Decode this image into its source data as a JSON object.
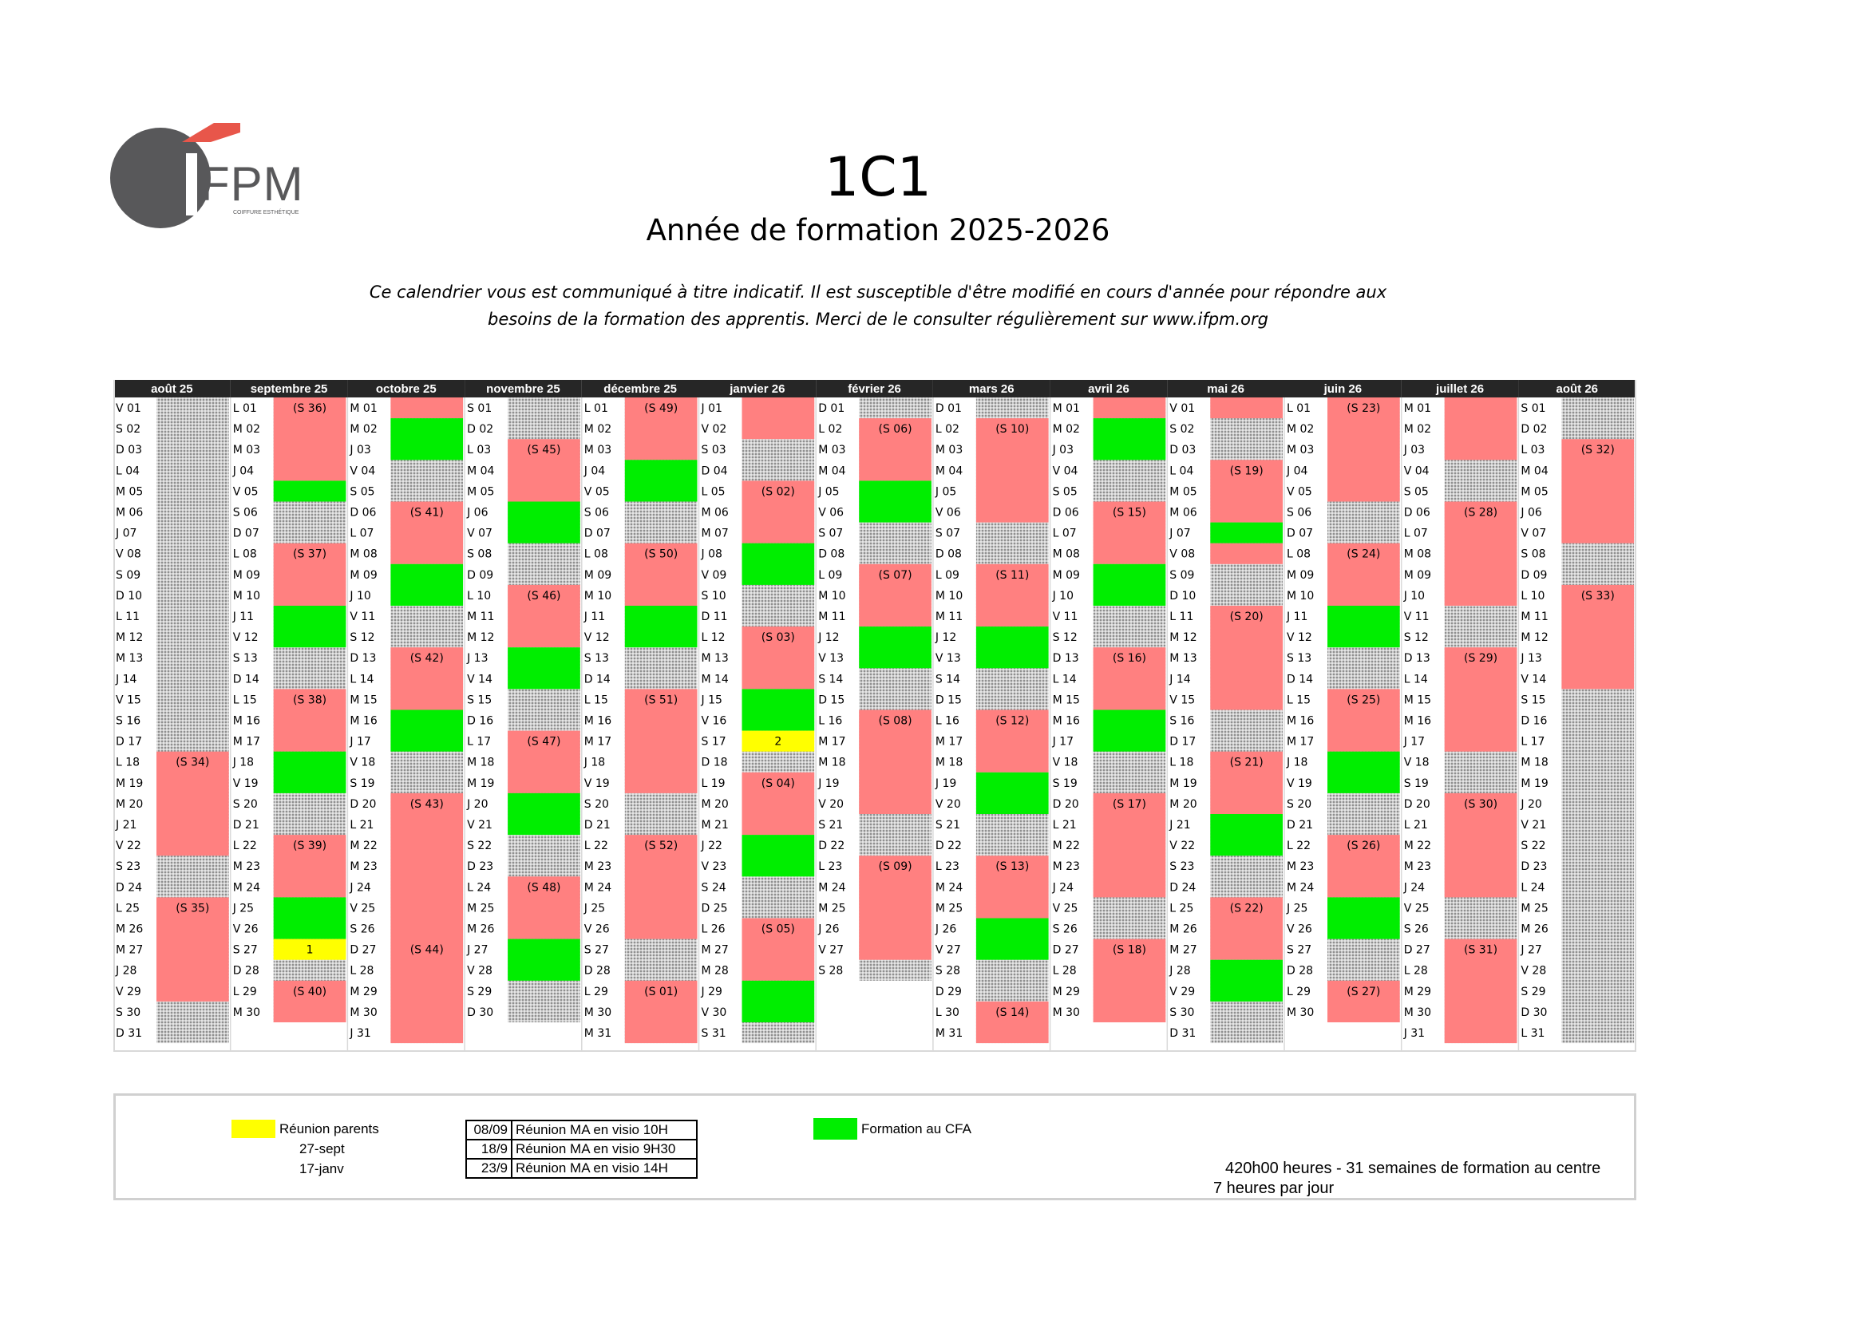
{
  "logo": {
    "text": "IFPM",
    "tagline": "COIFFURE ESTHÉTIQUE",
    "colors": {
      "circle": "#58585a",
      "roof": "#e8564a"
    }
  },
  "header": {
    "title": "1C1",
    "subtitle": "Année de formation 2025-2026",
    "notice": "Ce calendrier vous est communiqué à titre indicatif. Il est susceptible d'être modifié en cours d'année pour répondre aux besoins de la formation des apprentis. Merci de le consulter régulièrement sur www.ifpm.org"
  },
  "colors": {
    "header": "#262626",
    "formation": "#ff8080",
    "cfa": "#00ee00",
    "meeting": "#ffff00",
    "pattern": "#c8c8c8"
  },
  "calendar": {
    "months": [
      {
        "label": "août 25",
        "start": "V",
        "days": 31,
        "weekLabels": {
          "18": "(S 34)",
          "25": "(S 35)"
        },
        "blocks": [
          [
            18,
            22,
            "f"
          ],
          [
            25,
            29,
            "f"
          ]
        ],
        "markers": {}
      },
      {
        "label": "septembre 25",
        "start": "L",
        "days": 30,
        "weekLabels": {
          "1": "(S 36)",
          "8": "(S 37)",
          "15": "(S 38)",
          "22": "(S 39)",
          "29": "(S 40)"
        },
        "blocks": [
          [
            1,
            4,
            "f"
          ],
          [
            5,
            5,
            "g"
          ],
          [
            8,
            10,
            "f"
          ],
          [
            11,
            12,
            "g"
          ],
          [
            15,
            17,
            "f"
          ],
          [
            18,
            19,
            "g"
          ],
          [
            22,
            24,
            "f"
          ],
          [
            25,
            26,
            "g"
          ],
          [
            27,
            27,
            "y"
          ],
          [
            29,
            30,
            "f"
          ]
        ],
        "markers": {
          "27": "1"
        }
      },
      {
        "label": "octobre 25",
        "start": "M",
        "days": 31,
        "weekLabels": {
          "6": "(S 41)",
          "13": "(S 42)",
          "20": "(S 43)",
          "27": "(S 44)"
        },
        "blocks": [
          [
            1,
            1,
            "f"
          ],
          [
            2,
            3,
            "g"
          ],
          [
            6,
            8,
            "f"
          ],
          [
            9,
            10,
            "g"
          ],
          [
            13,
            15,
            "f"
          ],
          [
            16,
            17,
            "g"
          ],
          [
            20,
            31,
            "f"
          ]
        ],
        "markers": {}
      },
      {
        "label": "novembre 25",
        "start": "S",
        "days": 30,
        "weekLabels": {
          "3": "(S 45)",
          "10": "(S 46)",
          "17": "(S 47)",
          "24": "(S 48)"
        },
        "blocks": [
          [
            3,
            5,
            "f"
          ],
          [
            6,
            7,
            "g"
          ],
          [
            10,
            12,
            "f"
          ],
          [
            13,
            14,
            "g"
          ],
          [
            17,
            19,
            "f"
          ],
          [
            20,
            21,
            "g"
          ],
          [
            24,
            26,
            "f"
          ],
          [
            27,
            28,
            "g"
          ]
        ],
        "markers": {}
      },
      {
        "label": "décembre 25",
        "start": "L",
        "days": 31,
        "weekLabels": {
          "1": "(S 49)",
          "8": "(S 50)",
          "15": "(S 51)",
          "22": "(S 52)",
          "29": "(S 01)"
        },
        "blocks": [
          [
            1,
            3,
            "f"
          ],
          [
            4,
            5,
            "g"
          ],
          [
            8,
            10,
            "f"
          ],
          [
            11,
            12,
            "g"
          ],
          [
            15,
            19,
            "f"
          ],
          [
            22,
            26,
            "f"
          ],
          [
            29,
            31,
            "f"
          ]
        ],
        "markers": {}
      },
      {
        "label": "janvier 26",
        "start": "J",
        "days": 31,
        "weekLabels": {
          "5": "(S 02)",
          "12": "(S 03)",
          "19": "(S 04)",
          "26": "(S 05)"
        },
        "blocks": [
          [
            1,
            2,
            "f"
          ],
          [
            5,
            7,
            "f"
          ],
          [
            8,
            9,
            "g"
          ],
          [
            12,
            14,
            "f"
          ],
          [
            15,
            16,
            "g"
          ],
          [
            17,
            17,
            "y"
          ],
          [
            19,
            21,
            "f"
          ],
          [
            22,
            23,
            "g"
          ],
          [
            26,
            28,
            "f"
          ],
          [
            29,
            30,
            "g"
          ]
        ],
        "markers": {
          "17": "2"
        }
      },
      {
        "label": "février 26",
        "start": "D",
        "days": 28,
        "weekLabels": {
          "2": "(S 06)",
          "9": "(S 07)",
          "16": "(S 08)",
          "23": "(S 09)"
        },
        "blocks": [
          [
            2,
            4,
            "f"
          ],
          [
            5,
            6,
            "g"
          ],
          [
            9,
            11,
            "f"
          ],
          [
            12,
            13,
            "g"
          ],
          [
            16,
            20,
            "f"
          ],
          [
            23,
            27,
            "f"
          ]
        ],
        "markers": {}
      },
      {
        "label": "mars 26",
        "start": "D",
        "days": 31,
        "weekLabels": {
          "2": "(S 10)",
          "9": "(S 11)",
          "16": "(S 12)",
          "23": "(S 13)",
          "30": "(S 14)"
        },
        "blocks": [
          [
            2,
            6,
            "f"
          ],
          [
            9,
            11,
            "f"
          ],
          [
            12,
            13,
            "g"
          ],
          [
            16,
            18,
            "f"
          ],
          [
            19,
            20,
            "g"
          ],
          [
            23,
            25,
            "f"
          ],
          [
            26,
            27,
            "g"
          ],
          [
            30,
            31,
            "f"
          ]
        ],
        "markers": {}
      },
      {
        "label": "avril 26",
        "start": "M",
        "days": 30,
        "weekLabels": {
          "6": "(S 15)",
          "13": "(S 16)",
          "20": "(S 17)",
          "27": "(S 18)"
        },
        "blocks": [
          [
            1,
            1,
            "f"
          ],
          [
            2,
            3,
            "g"
          ],
          [
            6,
            8,
            "f"
          ],
          [
            9,
            10,
            "g"
          ],
          [
            13,
            15,
            "f"
          ],
          [
            16,
            17,
            "g"
          ],
          [
            20,
            24,
            "f"
          ],
          [
            27,
            30,
            "f"
          ]
        ],
        "markers": {}
      },
      {
        "label": "mai 26",
        "start": "V",
        "days": 31,
        "weekLabels": {
          "4": "(S 19)",
          "11": "(S 20)",
          "18": "(S 21)",
          "25": "(S 22)"
        },
        "blocks": [
          [
            1,
            1,
            "f"
          ],
          [
            4,
            6,
            "f"
          ],
          [
            7,
            7,
            "g"
          ],
          [
            8,
            8,
            "f"
          ],
          [
            11,
            15,
            "f"
          ],
          [
            18,
            20,
            "f"
          ],
          [
            21,
            22,
            "g"
          ],
          [
            25,
            27,
            "f"
          ],
          [
            28,
            29,
            "g"
          ]
        ],
        "markers": {}
      },
      {
        "label": "juin 26",
        "start": "L",
        "days": 30,
        "weekLabels": {
          "1": "(S 23)",
          "8": "(S 24)",
          "15": "(S 25)",
          "22": "(S 26)",
          "29": "(S 27)"
        },
        "blocks": [
          [
            1,
            5,
            "f"
          ],
          [
            8,
            10,
            "f"
          ],
          [
            11,
            12,
            "g"
          ],
          [
            15,
            17,
            "f"
          ],
          [
            18,
            19,
            "g"
          ],
          [
            22,
            24,
            "f"
          ],
          [
            25,
            26,
            "g"
          ],
          [
            29,
            30,
            "f"
          ]
        ],
        "markers": {}
      },
      {
        "label": "juillet 26",
        "start": "M",
        "days": 31,
        "weekLabels": {
          "6": "(S 28)",
          "13": "(S 29)",
          "20": "(S 30)",
          "27": "(S 31)"
        },
        "blocks": [
          [
            1,
            3,
            "f"
          ],
          [
            6,
            10,
            "f"
          ],
          [
            13,
            17,
            "f"
          ],
          [
            20,
            24,
            "f"
          ],
          [
            27,
            31,
            "f"
          ]
        ],
        "markers": {}
      },
      {
        "label": "août 26",
        "start": "S",
        "days": 31,
        "weekLabels": {
          "3": "(S 32)",
          "10": "(S 33)"
        },
        "blocks": [
          [
            3,
            7,
            "f"
          ],
          [
            10,
            14,
            "f"
          ]
        ],
        "markers": {}
      }
    ]
  },
  "legend": {
    "parents_label": "Réunion parents",
    "parents_dates": [
      "27-sept",
      "17-janv"
    ],
    "meetings": [
      {
        "date": "08/09",
        "label": "Réunion MA en visio 10H"
      },
      {
        "date": "18/9",
        "label": "Réunion MA en visio 9H30"
      },
      {
        "date": "23/9",
        "label": "Réunion MA en visio 14H"
      }
    ],
    "cfa_label": "Formation au CFA",
    "summary_line1": "420h00 heures - 31 semaines de formation au centre",
    "summary_line2": "7 heures par jour"
  }
}
